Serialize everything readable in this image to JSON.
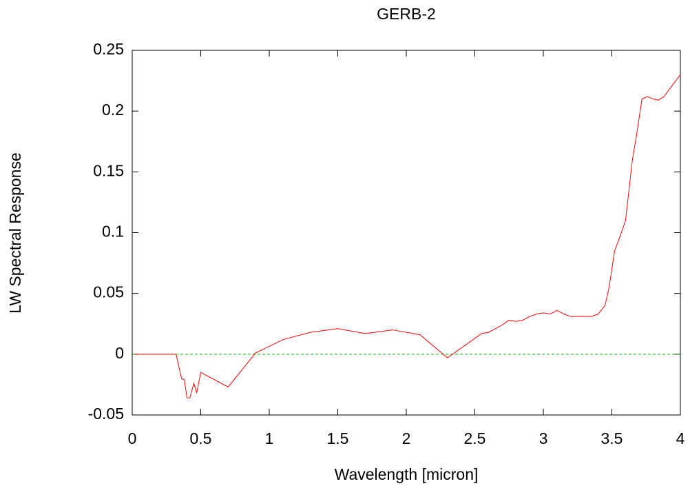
{
  "chart_data": {
    "type": "line",
    "title": "GERB-2",
    "xlabel": "Wavelength [micron]",
    "ylabel": "LW Spectral Response",
    "x": [
      0.02,
      0.32,
      0.36,
      0.38,
      0.4,
      0.42,
      0.45,
      0.47,
      0.5,
      0.7,
      0.9,
      1.1,
      1.3,
      1.5,
      1.7,
      1.9,
      2.1,
      2.3,
      2.55,
      2.6,
      2.65,
      2.7,
      2.75,
      2.8,
      2.85,
      2.9,
      2.95,
      3.0,
      3.05,
      3.1,
      3.15,
      3.2,
      3.25,
      3.3,
      3.35,
      3.4,
      3.45,
      3.48,
      3.52,
      3.56,
      3.6,
      3.62,
      3.65,
      3.68,
      3.72,
      3.76,
      3.8,
      3.84,
      3.88,
      3.92,
      4.0
    ],
    "values": [
      0,
      0,
      -0.02,
      -0.021,
      -0.036,
      -0.036,
      -0.024,
      -0.032,
      -0.015,
      -0.027,
      0.001,
      0.012,
      0.018,
      0.021,
      0.017,
      0.02,
      0.016,
      -0.003,
      0.017,
      0.018,
      0.021,
      0.024,
      0.028,
      0.027,
      0.028,
      0.031,
      0.033,
      0.034,
      0.033,
      0.036,
      0.033,
      0.031,
      0.031,
      0.031,
      0.031,
      0.033,
      0.04,
      0.055,
      0.085,
      0.097,
      0.11,
      0.13,
      0.16,
      0.18,
      0.21,
      0.212,
      0.21,
      0.209,
      0.212,
      0.218,
      0.23
    ],
    "color": "#ff0000",
    "zeroaxis": true,
    "zeroaxis_color": "#00c000",
    "xlim": [
      0,
      4
    ],
    "xticks": [
      0,
      0.5,
      1,
      1.5,
      2,
      2.5,
      3,
      3.5,
      4
    ],
    "ylim": [
      -0.05,
      0.25
    ],
    "yticks": [
      -0.05,
      0,
      0.05,
      0.1,
      0.15,
      0.2,
      0.25
    ]
  }
}
